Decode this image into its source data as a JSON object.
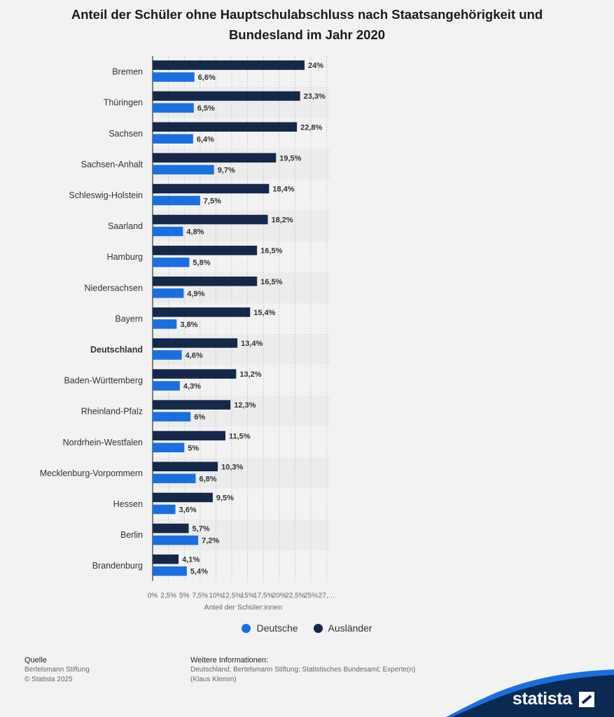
{
  "title": "Anteil der Schüler ohne Hauptschulabschluss nach Staatsangehörigkeit und Bundesland im Jahr 2020",
  "chart_data": {
    "type": "bar",
    "orientation": "horizontal",
    "title": "Anteil der Schüler ohne Hauptschulabschluss nach Staatsangehörigkeit und Bundesland im Jahr 2020",
    "xlabel": "Anteil der Schüler:innen",
    "ylabel": "",
    "xlim": [
      0,
      27.5
    ],
    "ticks": [
      "0%",
      "2,5%",
      "5%",
      "7,5%",
      "10%",
      "12,5%",
      "15%",
      "17,5%",
      "20%",
      "22,5%",
      "25%",
      "27,…"
    ],
    "categories": [
      "Bremen",
      "Thüringen",
      "Sachsen",
      "Sachsen-Anhalt",
      "Schleswig-Holstein",
      "Saarland",
      "Hamburg",
      "Niedersachsen",
      "Bayern",
      "Deutschland",
      "Baden-Württemberg",
      "Rheinland-Pfalz",
      "Nordrhein-Westfalen",
      "Mecklenburg-Vorpommern",
      "Hessen",
      "Berlin",
      "Brandenburg"
    ],
    "highlight_category": "Deutschland",
    "series": [
      {
        "name": "Ausländer",
        "color": "#14284a",
        "values": [
          24,
          23.3,
          22.8,
          19.5,
          18.4,
          18.2,
          16.5,
          16.5,
          15.4,
          13.4,
          13.2,
          12.3,
          11.5,
          10.3,
          9.5,
          5.7,
          4.1
        ],
        "labels": [
          "24%",
          "23,3%",
          "22,8%",
          "19,5%",
          "18,4%",
          "18,2%",
          "16,5%",
          "16,5%",
          "15,4%",
          "13,4%",
          "13,2%",
          "12,3%",
          "11,5%",
          "10,3%",
          "9,5%",
          "5,7%",
          "4,1%"
        ]
      },
      {
        "name": "Deutsche",
        "color": "#1a6fe0",
        "values": [
          6.6,
          6.5,
          6.4,
          9.7,
          7.5,
          4.8,
          5.8,
          4.9,
          3.8,
          4.6,
          4.3,
          6,
          5,
          6.8,
          3.6,
          7.2,
          5.4
        ],
        "labels": [
          "6,6%",
          "6,5%",
          "6,4%",
          "9,7%",
          "7,5%",
          "4,8%",
          "5,8%",
          "4,9%",
          "3,8%",
          "4,6%",
          "4,3%",
          "6%",
          "5%",
          "6,8%",
          "3,6%",
          "7,2%",
          "5,4%"
        ]
      }
    ],
    "legend": [
      {
        "name": "Deutsche",
        "color": "#1a6fe0"
      },
      {
        "name": "Ausländer",
        "color": "#14284a"
      }
    ]
  },
  "footer": {
    "source_heading": "Quelle",
    "source_line1": "Bertelsmann Stiftung",
    "source_line2": "© Statista 2025",
    "info_heading": "Weitere Informationen:",
    "info_line1": "Deutschland; Bertelsmann Stiftung; Statistisches Bundesamt; Experte(n)",
    "info_line2": "(Klaus Klemm)"
  },
  "brand": "statista"
}
